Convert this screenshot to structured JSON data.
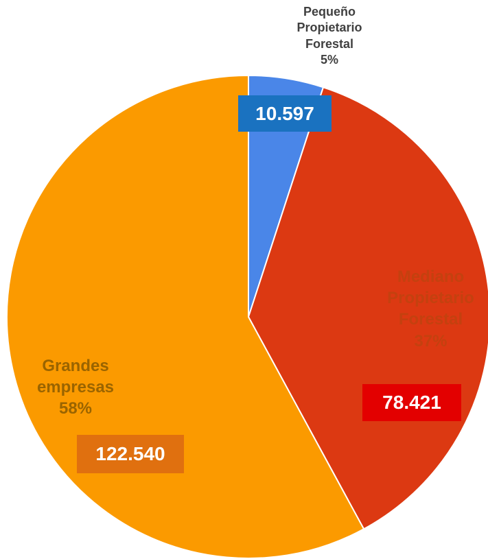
{
  "chart_data": {
    "type": "pie",
    "categories": [
      "Pequeño Propietario Forestal",
      "Mediano Propietario Forestal",
      "Grandes empresas"
    ],
    "values": [
      10597,
      78421,
      122540
    ],
    "value_labels": [
      "10.597",
      "78.421",
      "122.540"
    ],
    "shares": [
      5,
      37,
      58
    ],
    "share_labels": [
      "5%",
      "37%",
      "58%"
    ],
    "colors": [
      "#4a86e8",
      "#dc3912",
      "#fb9a00"
    ]
  }
}
